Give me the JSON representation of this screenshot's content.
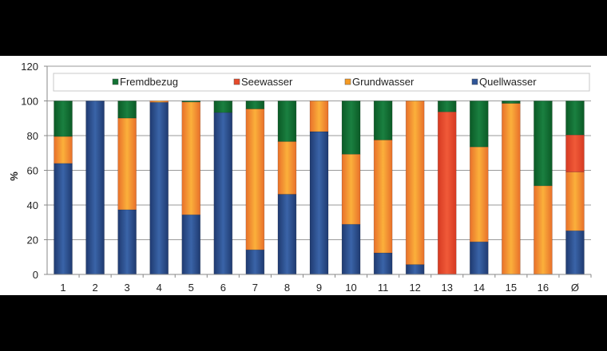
{
  "chart_data": {
    "type": "bar",
    "stacked": true,
    "title": "",
    "xlabel": "",
    "ylabel": "%",
    "ylim": [
      0,
      120
    ],
    "yticks": [
      0,
      20,
      40,
      60,
      80,
      100,
      120
    ],
    "grid": true,
    "legend_position": "top",
    "categories": [
      "1",
      "2",
      "3",
      "4",
      "5",
      "6",
      "7",
      "8",
      "9",
      "10",
      "11",
      "12",
      "13",
      "14",
      "15",
      "16",
      "Ø"
    ],
    "series": [
      {
        "name": "Quellwasser",
        "color": "#2f5597",
        "values": [
          64,
          100,
          37.3,
          99.2,
          34.4,
          93.3,
          14.2,
          46.2,
          82.3,
          28.9,
          12.4,
          5.7,
          0,
          18.8,
          0,
          0,
          25.2
        ]
      },
      {
        "name": "Grundwasser",
        "color": "#f59a23",
        "values": [
          15.5,
          0,
          52.8,
          0.8,
          65,
          0,
          81.2,
          30.4,
          17.7,
          40.4,
          65.1,
          94.3,
          0,
          54.7,
          98.6,
          51.1,
          33.8
        ]
      },
      {
        "name": "Seewasser",
        "color": "#e64a2a",
        "values": [
          0,
          0,
          0,
          0,
          0,
          0,
          0,
          0,
          0,
          0,
          0,
          0,
          93.7,
          0,
          0,
          0,
          21.4
        ]
      },
      {
        "name": "Fremdbezug",
        "color": "#127233",
        "values": [
          20.5,
          0,
          9.9,
          0,
          0.6,
          6.7,
          4.6,
          23.4,
          0,
          30.7,
          22.5,
          0,
          6.3,
          26.5,
          1.4,
          48.9,
          19.6
        ]
      }
    ],
    "legend_order": [
      "Fremdbezug",
      "Seewasser",
      "Grundwasser",
      "Quellwasser"
    ]
  }
}
